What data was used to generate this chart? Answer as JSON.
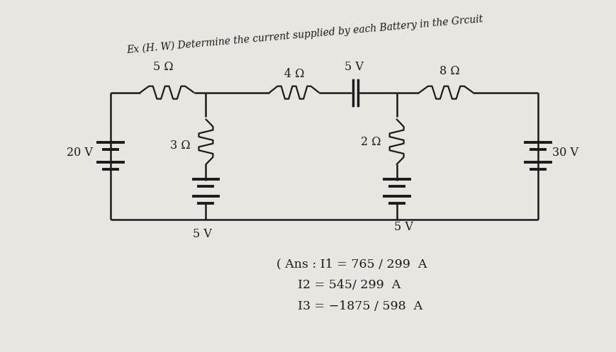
{
  "bg_color": "#e8e6e0",
  "paper_color": "#f0eeea",
  "line_color": "#1a1a1a",
  "title_line1": "Ex (H. W) Determine the current supplied by each Battery in the Grcuit",
  "ans_line1": "( Ans : I1 = 765 / 299  A",
  "ans_line2": "I2 = 545/ 299  A",
  "ans_line3": "I3 = −1875 / 598  A",
  "label_20V": "20 V",
  "label_5V_left": "5 V",
  "label_5V_right": "5 V",
  "label_30V": "30 V",
  "label_5ohm": "5 Ω",
  "label_4ohm": "4 Ω",
  "label_8ohm": "8 Ω",
  "label_3ohm": "3 Ω",
  "label_2ohm": "2 Ω",
  "label_5V_top": "5 V",
  "circuit_lw": 1.8,
  "resistor_lw": 1.6
}
